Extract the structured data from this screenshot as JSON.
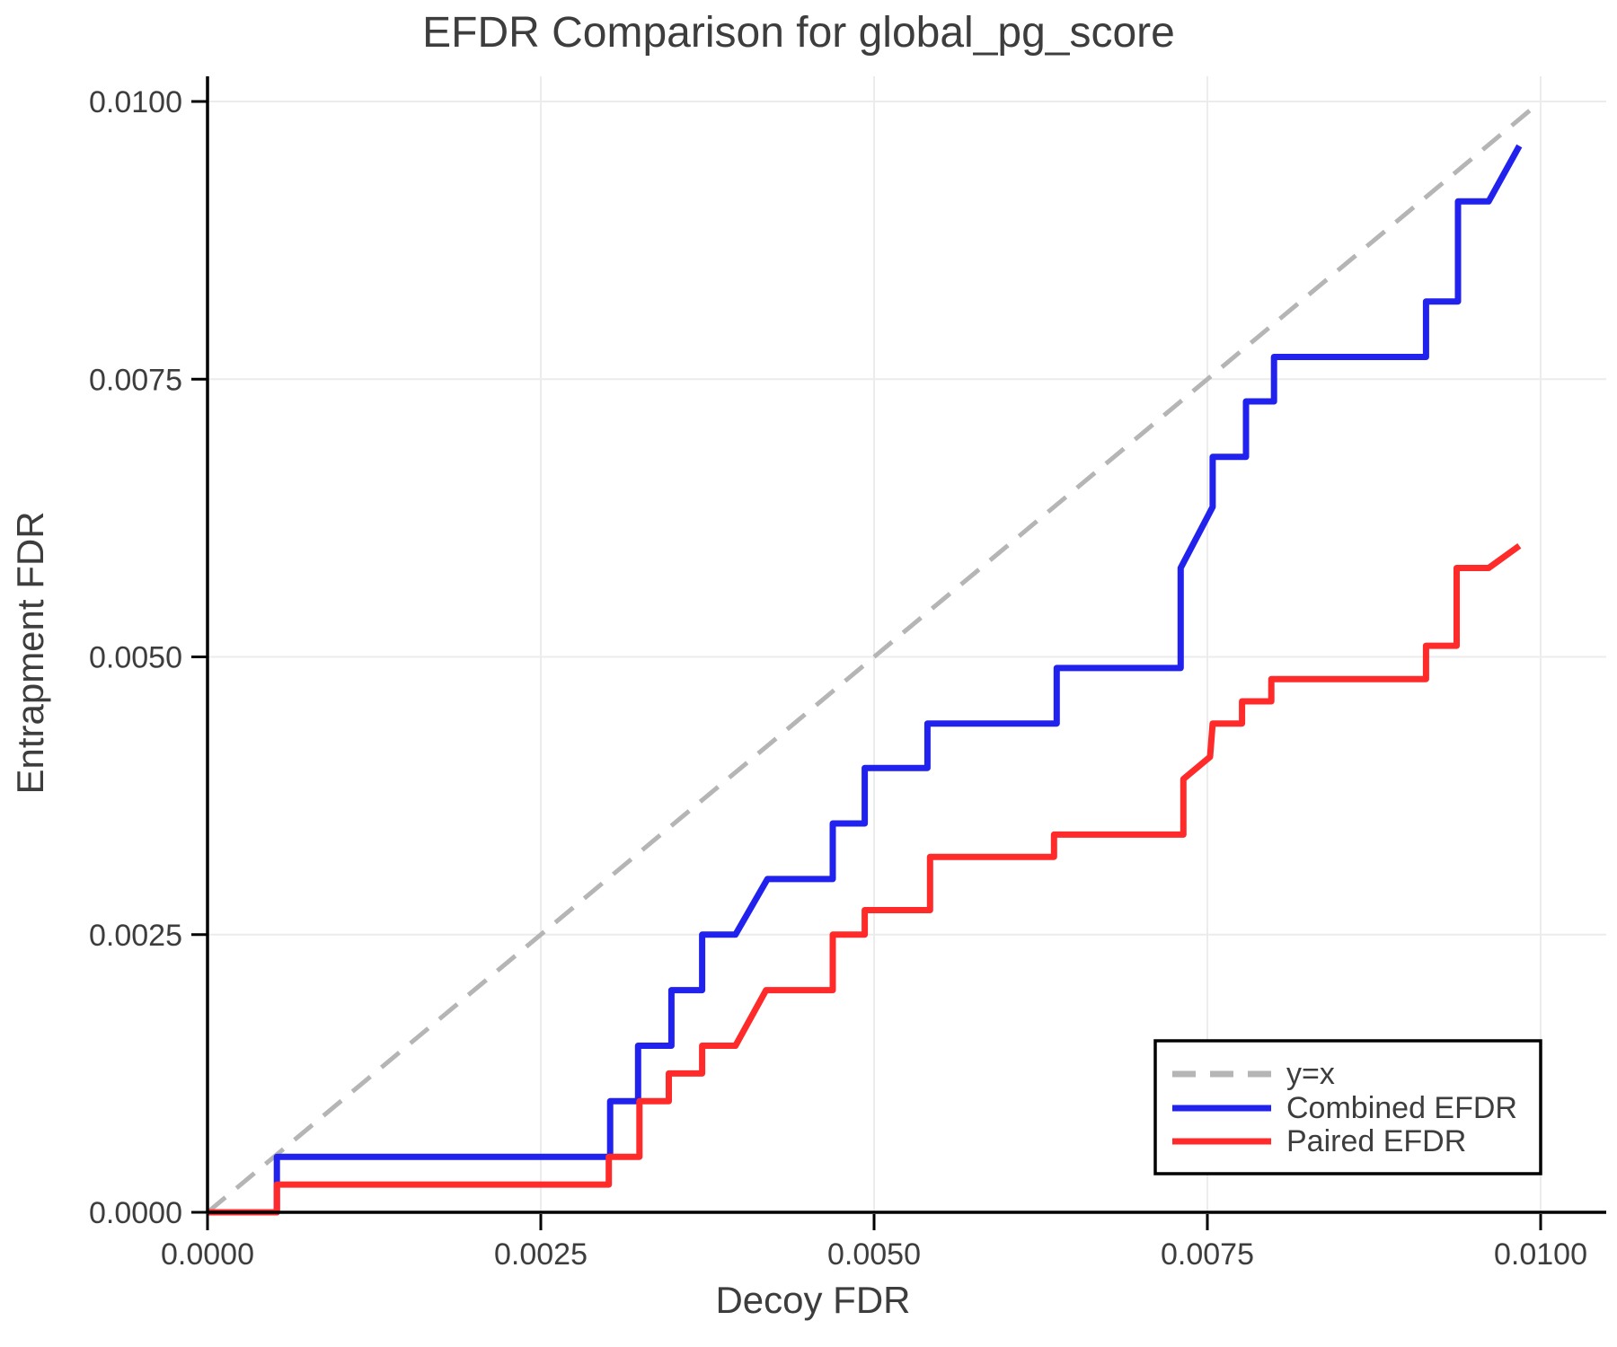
{
  "chart_data": {
    "type": "line",
    "title": "EFDR Comparison for global_pg_score",
    "xlabel": "Decoy FDR",
    "ylabel": "Entrapment FDR",
    "xlim": [
      0.0,
      0.01
    ],
    "ylim": [
      0.0,
      0.01
    ],
    "grid": true,
    "x_ticks": [
      0.0,
      0.0025,
      0.005,
      0.0075,
      0.01
    ],
    "x_tick_labels": [
      "0.0000",
      "0.0025",
      "0.0050",
      "0.0075",
      "0.0100"
    ],
    "y_ticks": [
      0.0,
      0.0025,
      0.005,
      0.0075,
      0.01
    ],
    "y_tick_labels": [
      "0.0000",
      "0.0025",
      "0.0050",
      "0.0075",
      "0.0100"
    ],
    "legend_position": "bottom-right",
    "series": [
      {
        "name": "y=x",
        "color": "#b5b5b5",
        "style": "dashed",
        "points": [
          [
            0.0,
            0.0
          ],
          [
            0.01,
            0.01
          ]
        ]
      },
      {
        "name": "Combined EFDR",
        "color": "#2222ee",
        "style": "solid",
        "points": [
          [
            0.0,
            0.0
          ],
          [
            0.00052,
            0.0
          ],
          [
            0.00052,
            0.0005
          ],
          [
            0.00302,
            0.0005
          ],
          [
            0.00302,
            0.001
          ],
          [
            0.00323,
            0.001
          ],
          [
            0.00323,
            0.0015
          ],
          [
            0.00348,
            0.0015
          ],
          [
            0.00348,
            0.002
          ],
          [
            0.00371,
            0.002
          ],
          [
            0.00371,
            0.0025
          ],
          [
            0.00396,
            0.0025
          ],
          [
            0.0042,
            0.003
          ],
          [
            0.00469,
            0.003
          ],
          [
            0.00469,
            0.0035
          ],
          [
            0.00493,
            0.0035
          ],
          [
            0.00493,
            0.004
          ],
          [
            0.0054,
            0.004
          ],
          [
            0.0054,
            0.0044
          ],
          [
            0.00637,
            0.0044
          ],
          [
            0.00637,
            0.0049
          ],
          [
            0.0073,
            0.0049
          ],
          [
            0.0073,
            0.0058
          ],
          [
            0.00754,
            0.00635
          ],
          [
            0.00754,
            0.0068
          ],
          [
            0.00779,
            0.0068
          ],
          [
            0.00779,
            0.0073
          ],
          [
            0.008,
            0.0073
          ],
          [
            0.008,
            0.0077
          ],
          [
            0.00914,
            0.0077
          ],
          [
            0.00914,
            0.0082
          ],
          [
            0.00938,
            0.0082
          ],
          [
            0.00938,
            0.0091
          ],
          [
            0.00961,
            0.0091
          ],
          [
            0.00984,
            0.0096
          ]
        ]
      },
      {
        "name": "Paired EFDR",
        "color": "#ff2a2a",
        "style": "solid",
        "points": [
          [
            0.0,
            0.0
          ],
          [
            0.00052,
            0.0
          ],
          [
            0.00052,
            0.00025
          ],
          [
            0.00301,
            0.00025
          ],
          [
            0.00301,
            0.0005
          ],
          [
            0.00324,
            0.0005
          ],
          [
            0.00324,
            0.001
          ],
          [
            0.00346,
            0.001
          ],
          [
            0.00346,
            0.00125
          ],
          [
            0.00371,
            0.00125
          ],
          [
            0.00371,
            0.0015
          ],
          [
            0.00396,
            0.0015
          ],
          [
            0.00419,
            0.002
          ],
          [
            0.00469,
            0.002
          ],
          [
            0.00469,
            0.0025
          ],
          [
            0.00493,
            0.0025
          ],
          [
            0.00493,
            0.00272
          ],
          [
            0.00542,
            0.00272
          ],
          [
            0.00542,
            0.0032
          ],
          [
            0.00635,
            0.0032
          ],
          [
            0.00635,
            0.0034
          ],
          [
            0.00732,
            0.0034
          ],
          [
            0.00732,
            0.0039
          ],
          [
            0.00752,
            0.0041
          ],
          [
            0.00754,
            0.0044
          ],
          [
            0.00776,
            0.0044
          ],
          [
            0.00776,
            0.0046
          ],
          [
            0.00798,
            0.0046
          ],
          [
            0.00798,
            0.0048
          ],
          [
            0.00914,
            0.0048
          ],
          [
            0.00914,
            0.0051
          ],
          [
            0.00937,
            0.0051
          ],
          [
            0.00937,
            0.0058
          ],
          [
            0.00961,
            0.0058
          ],
          [
            0.00984,
            0.006
          ]
        ]
      }
    ],
    "colors": {
      "grid": "#ececec",
      "spine": "#000000",
      "text": "#3d3d3d",
      "background": "#ffffff"
    }
  }
}
